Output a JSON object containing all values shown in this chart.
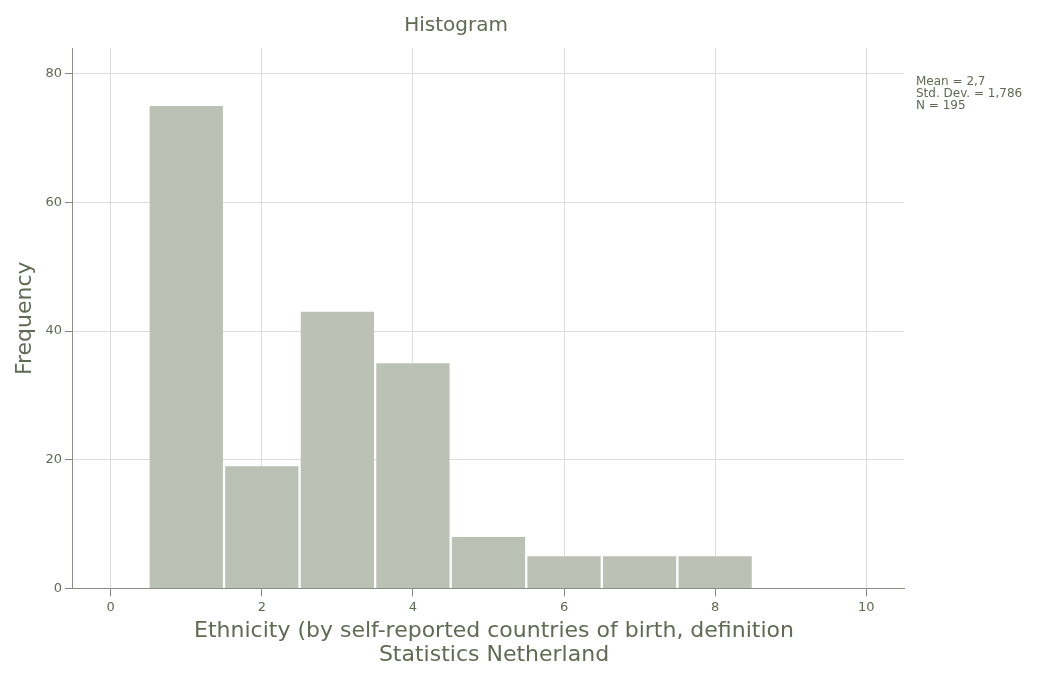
{
  "chart_data": {
    "type": "histogram",
    "title": "Histogram",
    "xlabel": "Ethnicity (by self-reported countries of birth, definition Statistics Netherland",
    "ylabel": "Frequency",
    "bins": [
      0.5,
      1.5,
      2.5,
      3.5,
      4.5,
      5.5,
      6.5,
      7.5,
      8.5
    ],
    "values": [
      75,
      19,
      43,
      35,
      8,
      5,
      5,
      5
    ],
    "color": "#bcc1b6",
    "xlim": [
      -0.5,
      10.5
    ],
    "xticks": [
      0,
      2,
      4,
      6,
      8,
      10
    ],
    "ylim": [
      0,
      84
    ],
    "yticks": [
      0,
      20,
      40,
      60,
      80
    ],
    "grid": true,
    "legend": false,
    "annotations": [
      "Mean = 2,7",
      "Std. Dev. = 1,786",
      "N = 195"
    ]
  }
}
